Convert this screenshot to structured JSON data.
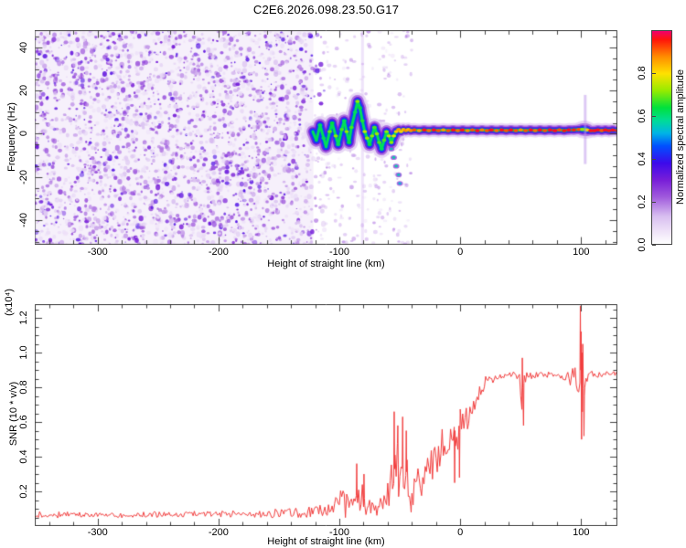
{
  "title": "C2E6.2026.098.23.50.G17",
  "axis_color": "#444444",
  "chart_data": [
    {
      "type": "heatmap",
      "name": "doppler-spectrogram",
      "xlabel": "Height of straight line (km)",
      "ylabel": "Frequency (Hz)",
      "xlim": [
        -352,
        130
      ],
      "ylim": [
        -51.4,
        48
      ],
      "x_tick_labels": [
        "-300",
        "-200",
        "-100",
        "0",
        "100"
      ],
      "x_tick_values": [
        -300,
        -200,
        -100,
        0,
        100
      ],
      "x_minor_step": 20,
      "y_tick_labels": [
        "40",
        "20",
        "0",
        "-20",
        "-40"
      ],
      "y_tick_values": [
        40,
        20,
        0,
        -20,
        -40
      ],
      "y_minor_step": 5,
      "colorbar": {
        "label": "Normalized spectral amplitude",
        "tick_labels": [
          "0.0",
          "0.2",
          "0.4",
          "0.6",
          "0.8"
        ],
        "tick_values": [
          0.0,
          0.2,
          0.4,
          0.6,
          0.8
        ],
        "range": [
          0,
          1
        ]
      },
      "colormap_stops": [
        [
          0.0,
          "#ffffff"
        ],
        [
          0.06,
          "#eee2f8"
        ],
        [
          0.13,
          "#d8bef0"
        ],
        [
          0.22,
          "#a05adc"
        ],
        [
          0.3,
          "#781ed8"
        ],
        [
          0.38,
          "#3c0aeb"
        ],
        [
          0.46,
          "#0050ff"
        ],
        [
          0.52,
          "#00b4e6"
        ],
        [
          0.58,
          "#00dc96"
        ],
        [
          0.64,
          "#00e13c"
        ],
        [
          0.72,
          "#96eb00"
        ],
        [
          0.8,
          "#ffe100"
        ],
        [
          0.88,
          "#ff8c00"
        ],
        [
          0.96,
          "#ff140a"
        ],
        [
          1.0,
          "#f0006e"
        ]
      ],
      "noise_region": {
        "x_range": [
          -352,
          -117
        ],
        "value_range": [
          0.06,
          0.36
        ]
      },
      "sparse_noise_x_range": [
        -117,
        -40
      ],
      "faint_stripe_x": -82,
      "trace": [
        [
          -122,
          1,
          0.5
        ],
        [
          -119,
          -3,
          0.55
        ],
        [
          -116,
          4,
          0.6
        ],
        [
          -113,
          -2,
          0.6
        ],
        [
          -111,
          -6,
          0.55
        ],
        [
          -108,
          1,
          0.68
        ],
        [
          -106,
          5,
          0.62
        ],
        [
          -103,
          -1,
          0.7
        ],
        [
          -101,
          -5,
          0.6
        ],
        [
          -98,
          2,
          0.66
        ],
        [
          -96,
          6,
          0.6
        ],
        [
          -94,
          1,
          0.7
        ],
        [
          -92,
          -4,
          0.62
        ],
        [
          -90,
          3,
          0.66
        ],
        [
          -87,
          10,
          0.6
        ],
        [
          -85,
          15,
          0.7
        ],
        [
          -83,
          12,
          0.62
        ],
        [
          -81,
          6,
          0.64
        ],
        [
          -79,
          1,
          0.74
        ],
        [
          -77,
          -2,
          0.7
        ],
        [
          -75,
          -5,
          0.62
        ],
        [
          -73,
          -1,
          0.7
        ],
        [
          -71,
          3,
          0.66
        ],
        [
          -69,
          0,
          0.7
        ],
        [
          -67,
          -4,
          0.66
        ],
        [
          -65,
          -7,
          0.6
        ],
        [
          -63,
          -3,
          0.66
        ],
        [
          -61,
          1,
          0.7
        ],
        [
          -59,
          -1,
          0.74
        ],
        [
          -57,
          -4,
          0.7
        ],
        [
          -55,
          -1,
          0.76
        ],
        [
          -53,
          1,
          0.8
        ],
        [
          -51,
          2,
          0.84
        ],
        [
          -49,
          1,
          0.8
        ],
        [
          -47,
          2,
          0.82
        ],
        [
          -45,
          1.5,
          0.86
        ],
        [
          -43,
          2,
          0.82
        ],
        [
          -41,
          1.5,
          0.86
        ],
        [
          -38,
          1.8,
          0.9
        ],
        [
          -34,
          1.5,
          0.84
        ],
        [
          -30,
          1.8,
          0.95
        ],
        [
          -26,
          1.5,
          0.88
        ],
        [
          -22,
          1.8,
          0.96
        ],
        [
          -18,
          1.5,
          0.9
        ],
        [
          -14,
          1.8,
          0.85
        ],
        [
          -10,
          1.5,
          0.9
        ],
        [
          -6,
          1.8,
          0.94
        ],
        [
          -2,
          1.5,
          0.88
        ],
        [
          2,
          1.8,
          0.93
        ],
        [
          6,
          1.5,
          0.86
        ],
        [
          10,
          1.8,
          0.9
        ],
        [
          14,
          1.5,
          0.94
        ],
        [
          18,
          1.8,
          0.87
        ],
        [
          22,
          1.5,
          0.9
        ],
        [
          26,
          1.8,
          0.93
        ],
        [
          30,
          1.5,
          0.88
        ],
        [
          34,
          1.8,
          0.92
        ],
        [
          38,
          1.5,
          0.9
        ],
        [
          42,
          1.8,
          0.94
        ],
        [
          46,
          1.5,
          0.9
        ],
        [
          50,
          1.8,
          0.86
        ],
        [
          54,
          1.5,
          0.9
        ],
        [
          58,
          1.8,
          0.92
        ],
        [
          62,
          1.5,
          0.88
        ],
        [
          66,
          1.8,
          0.94
        ],
        [
          70,
          1.5,
          0.9
        ],
        [
          74,
          1.8,
          0.95
        ],
        [
          78,
          1.5,
          0.96
        ],
        [
          82,
          1.8,
          0.9
        ],
        [
          86,
          1.5,
          0.94
        ],
        [
          90,
          1.8,
          0.96
        ],
        [
          94,
          1.8,
          0.93
        ],
        [
          98,
          2,
          0.9
        ],
        [
          101,
          2,
          0.7
        ],
        [
          103,
          2,
          0.5
        ],
        [
          105,
          1.8,
          0.8
        ],
        [
          108,
          1.5,
          0.92
        ],
        [
          111,
          1.5,
          0.96
        ],
        [
          114,
          1.8,
          0.95
        ],
        [
          117,
          1.5,
          0.9
        ],
        [
          120,
          1.8,
          0.93
        ],
        [
          123,
          1.5,
          0.95
        ],
        [
          126,
          1.8,
          0.96
        ],
        [
          130,
          1.5,
          0.97
        ]
      ],
      "tail": [
        [
          -57,
          -7,
          0.45
        ],
        [
          -55,
          -11,
          0.5
        ],
        [
          -53,
          -15,
          0.5
        ],
        [
          -51,
          -19,
          0.45
        ],
        [
          -50,
          -23,
          0.38
        ]
      ]
    },
    {
      "type": "line",
      "name": "snr-profile",
      "xlabel": "Height of straight line (km)",
      "ylabel": "SNR (10 * v/v)",
      "scale_note": "(x10⁴)",
      "line_color": "#f23d3d",
      "xlim": [
        -352,
        130
      ],
      "ylim": [
        0,
        1.28
      ],
      "x_tick_labels": [
        "-300",
        "-200",
        "-100",
        "0",
        "100"
      ],
      "x_tick_values": [
        -300,
        -200,
        -100,
        0,
        100
      ],
      "x_minor_step": 20,
      "y_tick_labels": [
        "0.2",
        "0.4",
        "0.6",
        "0.8",
        "1.0",
        "1.2"
      ],
      "y_tick_values": [
        0.2,
        0.4,
        0.6,
        0.8,
        1.0,
        1.2
      ],
      "y_minor_step": 0.05,
      "envelope": [
        [
          -352,
          0.065,
          0.02
        ],
        [
          -300,
          0.065,
          0.02
        ],
        [
          -250,
          0.065,
          0.02
        ],
        [
          -210,
          0.07,
          0.025
        ],
        [
          -170,
          0.07,
          0.025
        ],
        [
          -140,
          0.075,
          0.03
        ],
        [
          -125,
          0.08,
          0.035
        ],
        [
          -115,
          0.09,
          0.05
        ],
        [
          -105,
          0.1,
          0.06
        ],
        [
          -98,
          0.14,
          0.1
        ],
        [
          -93,
          0.12,
          0.08
        ],
        [
          -88,
          0.18,
          0.14
        ],
        [
          -84,
          0.14,
          0.1
        ],
        [
          -80,
          0.16,
          0.12
        ],
        [
          -76,
          0.1,
          0.05
        ],
        [
          -71,
          0.1,
          0.06
        ],
        [
          -66,
          0.12,
          0.08
        ],
        [
          -61,
          0.13,
          0.1
        ],
        [
          -57,
          0.28,
          0.22
        ],
        [
          -53,
          0.38,
          0.24
        ],
        [
          -50,
          0.3,
          0.22
        ],
        [
          -47,
          0.38,
          0.22
        ],
        [
          -44,
          0.28,
          0.16
        ],
        [
          -41,
          0.15,
          0.1
        ],
        [
          -38,
          0.22,
          0.16
        ],
        [
          -35,
          0.32,
          0.2
        ],
        [
          -32,
          0.28,
          0.14
        ],
        [
          -29,
          0.35,
          0.16
        ],
        [
          -26,
          0.33,
          0.14
        ],
        [
          -23,
          0.42,
          0.16
        ],
        [
          -20,
          0.4,
          0.14
        ],
        [
          -17,
          0.45,
          0.14
        ],
        [
          -14,
          0.48,
          0.12
        ],
        [
          -11,
          0.5,
          0.14
        ],
        [
          -8,
          0.52,
          0.12
        ],
        [
          -5,
          0.55,
          0.12
        ],
        [
          -2,
          0.52,
          0.14
        ],
        [
          1,
          0.58,
          0.12
        ],
        [
          4,
          0.6,
          0.12
        ],
        [
          7,
          0.65,
          0.1
        ],
        [
          10,
          0.68,
          0.1
        ],
        [
          13,
          0.72,
          0.08
        ],
        [
          16,
          0.76,
          0.07
        ],
        [
          19,
          0.8,
          0.06
        ],
        [
          22,
          0.83,
          0.05
        ],
        [
          26,
          0.85,
          0.035
        ],
        [
          30,
          0.86,
          0.03
        ],
        [
          36,
          0.865,
          0.025
        ],
        [
          42,
          0.87,
          0.025
        ],
        [
          48,
          0.865,
          0.03
        ],
        [
          51,
          0.8,
          0.18
        ],
        [
          54,
          0.87,
          0.06
        ],
        [
          58,
          0.87,
          0.03
        ],
        [
          65,
          0.87,
          0.025
        ],
        [
          72,
          0.87,
          0.025
        ],
        [
          80,
          0.87,
          0.03
        ],
        [
          87,
          0.86,
          0.04
        ],
        [
          92,
          0.86,
          0.06
        ],
        [
          95,
          0.88,
          0.12
        ],
        [
          98,
          0.8,
          0.2
        ],
        [
          100,
          1.0,
          0.3
        ],
        [
          102,
          0.75,
          0.25
        ],
        [
          104,
          0.85,
          0.1
        ],
        [
          107,
          0.87,
          0.05
        ],
        [
          112,
          0.87,
          0.03
        ],
        [
          120,
          0.875,
          0.02
        ],
        [
          130,
          0.88,
          0.02
        ]
      ],
      "spikes": [
        [
          -86,
          0.36
        ],
        [
          -80,
          0.3
        ],
        [
          -55,
          0.66
        ],
        [
          -52,
          0.58
        ],
        [
          -48,
          0.63
        ],
        [
          -45,
          0.55
        ],
        [
          -41,
          0.08
        ],
        [
          -5,
          0.25
        ],
        [
          -1,
          0.28
        ],
        [
          51,
          0.97
        ],
        [
          52,
          0.58
        ],
        [
          99,
          1.27
        ],
        [
          100,
          0.5
        ],
        [
          101,
          1.05
        ],
        [
          102,
          0.52
        ]
      ]
    }
  ]
}
